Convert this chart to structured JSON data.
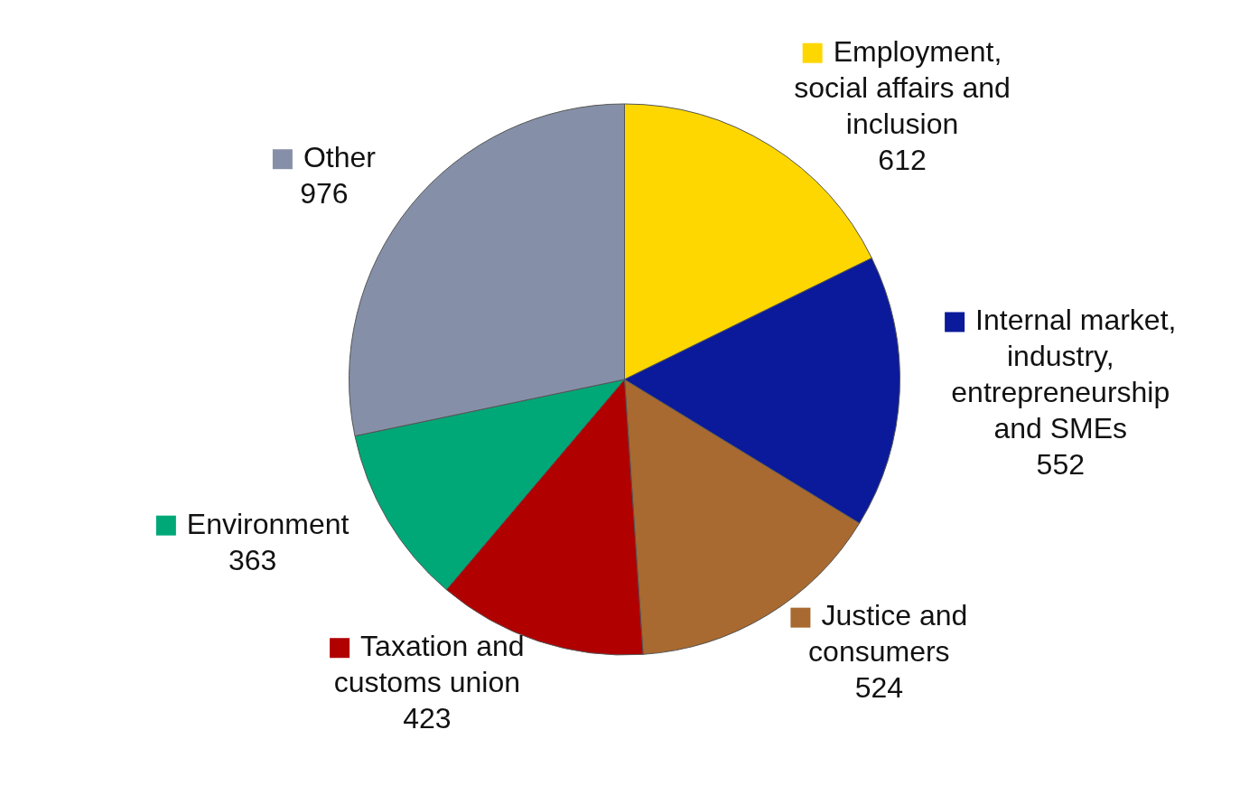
{
  "chart_data": {
    "type": "pie",
    "categories": [
      "Employment, social affairs and inclusion",
      "Internal market, industry, entrepreneurship and SMEs",
      "Justice and consumers",
      "Taxation and customs union",
      "Environment",
      "Other"
    ],
    "values": [
      612,
      552,
      524,
      423,
      363,
      976
    ],
    "colors": [
      "#ffd700",
      "#0a1a9a",
      "#a86a30",
      "#b00000",
      "#00a878",
      "#8590a8"
    ],
    "data_labels": true,
    "legend": "right"
  }
}
